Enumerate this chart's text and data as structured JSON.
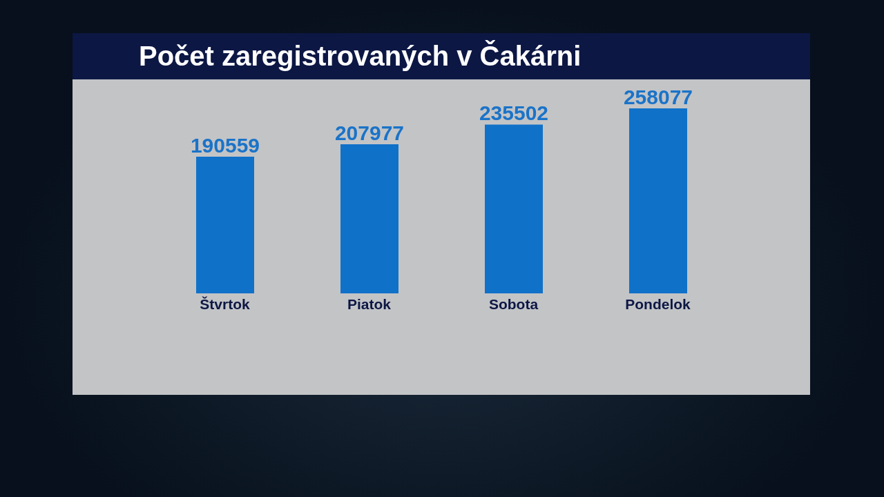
{
  "chart_data": {
    "type": "bar",
    "title": "Počet zaregistrovaných v Čakárni",
    "categories": [
      "Štvrtok",
      "Piatok",
      "Sobota",
      "Pondelok"
    ],
    "values": [
      190559,
      207977,
      235502,
      258077
    ],
    "color": "#1071c9",
    "data_labels": true
  }
}
